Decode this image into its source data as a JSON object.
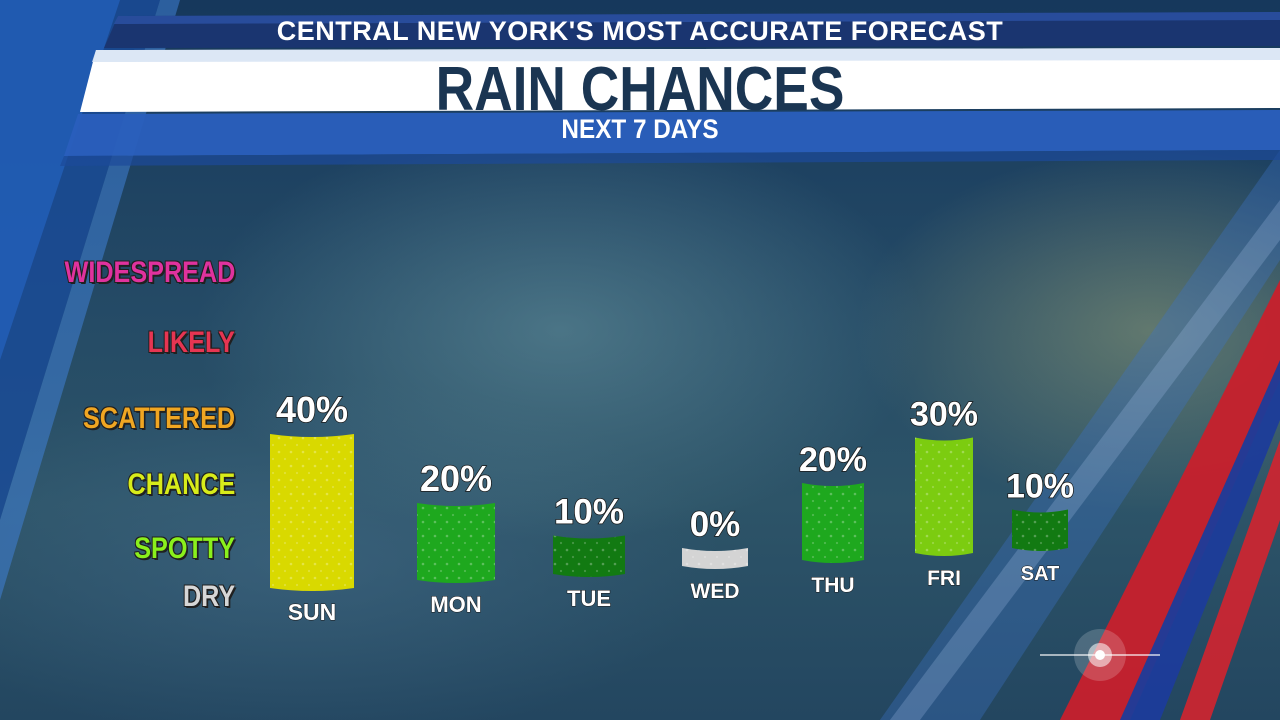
{
  "header": {
    "top": "CENTRAL NEW YORK'S MOST ACCURATE FORECAST",
    "title": "RAIN CHANCES",
    "subtitle": "NEXT 7 DAYS"
  },
  "scale_labels": [
    {
      "label": "WIDESPREAD",
      "color": "#e0329e"
    },
    {
      "label": "LIKELY",
      "color": "#e63552"
    },
    {
      "label": "SCATTERED",
      "color": "#f0a622"
    },
    {
      "label": "CHANCE",
      "color": "#d8ec1a"
    },
    {
      "label": "SPOTTY",
      "color": "#8af01c"
    },
    {
      "label": "DRY",
      "color": "#d6d6d6"
    }
  ],
  "chart_data": {
    "type": "bar",
    "title": "RAIN CHANCES",
    "subtitle": "NEXT 7 DAYS",
    "categories": [
      "SUN",
      "MON",
      "TUE",
      "WED",
      "THU",
      "FRI",
      "SAT"
    ],
    "values": [
      40,
      20,
      10,
      0,
      20,
      30,
      10
    ],
    "value_labels": [
      "40%",
      "20%",
      "10%",
      "0%",
      "20%",
      "30%",
      "10%"
    ],
    "bar_colors": [
      "#d9d900",
      "#1ea81e",
      "#127a12",
      "#d4d4d4",
      "#1ea81e",
      "#7ccc10",
      "#127a12"
    ],
    "ylim": [
      0,
      100
    ],
    "grid": false
  }
}
